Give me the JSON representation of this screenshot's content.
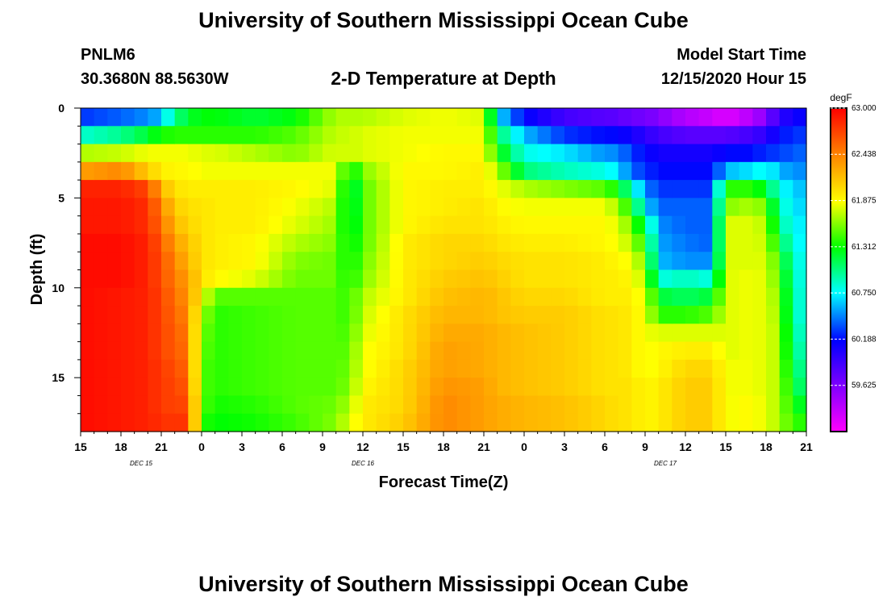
{
  "header": {
    "title": "University of Southern Mississippi Ocean Cube",
    "station_id": "PNLM6",
    "station_coords": "30.3680N 88.5630W",
    "plot_title": "2-D Temperature at Depth",
    "model_start_label": "Model Start Time",
    "model_start_value": "12/15/2020 Hour 15"
  },
  "footer": {
    "title": "University of Southern Mississippi Ocean Cube"
  },
  "chart_data": {
    "type": "heatmap",
    "title": "2-D Temperature at Depth",
    "xlabel": "Forecast Time(Z)",
    "ylabel": "Depth (ft)",
    "x_tick_labels": [
      "15",
      "18",
      "21",
      "0",
      "3",
      "6",
      "9",
      "12",
      "15",
      "18",
      "21",
      "0",
      "3",
      "6",
      "9",
      "12",
      "15",
      "18",
      "21"
    ],
    "x_hours_from_start": [
      0,
      3,
      6,
      9,
      12,
      15,
      18,
      21,
      24,
      27,
      30,
      33,
      36,
      39,
      42,
      45,
      48,
      51,
      54
    ],
    "date_labels": [
      {
        "text": "DEC 15",
        "hour": 4.5
      },
      {
        "text": "DEC 16",
        "hour": 21
      },
      {
        "text": "DEC 17",
        "hour": 43.5
      }
    ],
    "xlim_hours": [
      0,
      54
    ],
    "y_tick_labels": [
      "0",
      "5",
      "10",
      "15"
    ],
    "y_ticks": [
      0,
      5,
      10,
      15
    ],
    "ylim": [
      0,
      18
    ],
    "y_inverted": true,
    "colorbar": {
      "unit": "degF",
      "labels": [
        "63.000",
        "62.438",
        "61.875",
        "61.312",
        "60.750",
        "60.188",
        "59.625"
      ],
      "min": 59.0625,
      "max": 63.0,
      "colors_low_to_high": [
        "#ff00ff",
        "#8000ff",
        "#0000ff",
        "#00ffff",
        "#00ff00",
        "#ffff00",
        "#ff8000",
        "#ff0000"
      ]
    },
    "depth_levels_ft": [
      0.5,
      1.5,
      2.5,
      3.5,
      4.5,
      5.5,
      6.5,
      7.5,
      8.5,
      9.5,
      10.5,
      11.5,
      12.5,
      13.5,
      14.5,
      15.5,
      16.5,
      17.5
    ],
    "profiles": [
      {
        "hour": 0,
        "values": [
          60.3,
          60.85,
          61.7,
          62.3,
          62.85,
          62.9,
          62.9,
          62.95,
          62.95,
          62.95,
          62.95,
          62.95,
          62.95,
          62.95,
          62.95,
          62.95,
          62.95,
          62.95
        ]
      },
      {
        "hour": 3,
        "values": [
          60.4,
          61.0,
          61.75,
          62.4,
          62.85,
          62.9,
          62.9,
          62.95,
          62.95,
          62.95,
          62.9,
          62.9,
          62.9,
          62.9,
          62.9,
          62.9,
          62.9,
          62.9
        ]
      },
      {
        "hour": 5,
        "values": [
          60.5,
          61.2,
          61.85,
          62.1,
          62.7,
          62.8,
          62.8,
          62.85,
          62.85,
          62.85,
          62.85,
          62.85,
          62.85,
          62.85,
          62.85,
          62.85,
          62.85,
          62.85
        ]
      },
      {
        "hour": 6,
        "values": [
          60.6,
          61.35,
          61.85,
          61.95,
          62.2,
          62.4,
          62.5,
          62.6,
          62.65,
          62.65,
          62.7,
          62.7,
          62.7,
          62.7,
          62.75,
          62.75,
          62.75,
          62.8
        ]
      },
      {
        "hour": 7,
        "values": [
          61.0,
          61.4,
          61.85,
          61.9,
          62.0,
          62.1,
          62.2,
          62.3,
          62.4,
          62.45,
          62.5,
          62.55,
          62.6,
          62.6,
          62.65,
          62.7,
          62.7,
          62.75
        ]
      },
      {
        "hour": 8,
        "values": [
          61.2,
          61.4,
          61.85,
          61.9,
          61.95,
          62.0,
          62.05,
          62.15,
          62.2,
          62.3,
          62.35,
          62.4,
          62.45,
          62.5,
          62.55,
          62.6,
          62.7,
          62.8
        ]
      },
      {
        "hour": 9,
        "values": [
          61.3,
          61.4,
          61.8,
          61.85,
          61.95,
          62.0,
          62.0,
          62.0,
          62.0,
          62.0,
          61.9,
          61.7,
          61.6,
          61.55,
          61.5,
          61.5,
          61.5,
          61.4
        ]
      },
      {
        "hour": 10,
        "values": [
          61.3,
          61.4,
          61.8,
          61.85,
          61.95,
          61.95,
          61.95,
          61.95,
          61.95,
          61.9,
          61.5,
          61.4,
          61.4,
          61.4,
          61.4,
          61.4,
          61.35,
          61.3
        ]
      },
      {
        "hour": 13,
        "values": [
          61.2,
          61.4,
          61.7,
          61.85,
          61.95,
          61.95,
          61.95,
          61.9,
          61.9,
          61.8,
          61.5,
          61.45,
          61.45,
          61.45,
          61.45,
          61.45,
          61.4,
          61.35
        ]
      },
      {
        "hour": 16,
        "values": [
          61.3,
          61.5,
          61.6,
          61.85,
          61.9,
          61.85,
          61.8,
          61.7,
          61.6,
          61.55,
          61.5,
          61.5,
          61.5,
          61.5,
          61.5,
          61.5,
          61.5,
          61.45
        ]
      },
      {
        "hour": 19,
        "values": [
          61.7,
          61.75,
          61.8,
          61.85,
          61.8,
          61.7,
          61.65,
          61.6,
          61.55,
          61.55,
          61.5,
          61.5,
          61.5,
          61.5,
          61.5,
          61.5,
          61.55,
          61.6
        ]
      },
      {
        "hour": 20,
        "values": [
          61.7,
          61.75,
          61.75,
          61.2,
          61.0,
          61.05,
          61.1,
          61.2,
          61.25,
          61.3,
          61.4,
          61.4,
          61.45,
          61.5,
          61.55,
          61.6,
          61.7,
          61.8
        ]
      },
      {
        "hour": 21,
        "values": [
          61.7,
          61.8,
          61.8,
          61.6,
          61.5,
          61.5,
          61.5,
          61.5,
          61.55,
          61.6,
          61.7,
          61.75,
          61.8,
          61.85,
          61.85,
          61.9,
          61.95,
          61.95
        ]
      },
      {
        "hour": 24,
        "values": [
          61.8,
          61.85,
          61.85,
          61.9,
          61.9,
          61.9,
          61.9,
          61.95,
          61.95,
          61.95,
          61.95,
          62.0,
          62.0,
          62.0,
          62.05,
          62.05,
          62.05,
          62.1
        ]
      },
      {
        "hour": 27,
        "values": [
          61.85,
          61.85,
          61.9,
          61.9,
          61.95,
          61.95,
          62.0,
          62.05,
          62.05,
          62.1,
          62.15,
          62.2,
          62.25,
          62.3,
          62.3,
          62.35,
          62.4,
          62.4
        ]
      },
      {
        "hour": 30,
        "values": [
          61.8,
          61.85,
          61.9,
          61.95,
          61.95,
          62.0,
          62.0,
          62.05,
          62.1,
          62.15,
          62.2,
          62.2,
          62.25,
          62.25,
          62.25,
          62.3,
          62.3,
          62.3
        ]
      },
      {
        "hour": 31,
        "values": [
          60.7,
          61.1,
          61.35,
          61.7,
          61.85,
          61.9,
          61.95,
          62.0,
          62.05,
          62.1,
          62.15,
          62.15,
          62.2,
          62.2,
          62.2,
          62.2,
          62.25,
          62.25
        ]
      },
      {
        "hour": 33,
        "values": [
          60.2,
          60.6,
          60.8,
          61.05,
          61.7,
          61.85,
          61.9,
          61.95,
          62.0,
          62.0,
          62.05,
          62.1,
          62.15,
          62.15,
          62.15,
          62.15,
          62.2,
          62.2
        ]
      },
      {
        "hour": 36,
        "values": [
          59.9,
          60.3,
          60.7,
          60.9,
          61.6,
          61.85,
          61.9,
          61.95,
          62.0,
          62.0,
          62.05,
          62.1,
          62.1,
          62.1,
          62.1,
          62.1,
          62.15,
          62.15
        ]
      },
      {
        "hour": 39,
        "values": [
          59.8,
          60.2,
          60.5,
          60.8,
          61.5,
          61.85,
          61.9,
          61.9,
          61.95,
          61.95,
          61.95,
          62.0,
          62.0,
          62.0,
          62.0,
          62.0,
          62.05,
          62.05
        ]
      },
      {
        "hour": 40,
        "values": [
          59.8,
          60.2,
          60.5,
          60.7,
          61.3,
          61.65,
          61.8,
          61.85,
          61.9,
          61.95,
          61.95,
          62.0,
          62.0,
          62.0,
          62.0,
          62.0,
          62.0,
          62.0
        ]
      },
      {
        "hour": 41,
        "values": [
          59.7,
          60.1,
          60.3,
          60.4,
          60.9,
          61.3,
          61.55,
          61.7,
          61.85,
          61.9,
          61.95,
          61.95,
          61.95,
          61.95,
          61.95,
          62.0,
          62.0,
          62.0
        ]
      },
      {
        "hour": 42,
        "values": [
          59.7,
          60.0,
          60.2,
          60.3,
          60.5,
          60.7,
          61.1,
          61.35,
          61.55,
          61.7,
          61.8,
          61.85,
          61.85,
          61.85,
          61.85,
          61.9,
          61.9,
          61.9
        ]
      },
      {
        "hour": 43,
        "values": [
          59.6,
          59.9,
          60.1,
          60.2,
          60.3,
          60.4,
          60.5,
          60.55,
          60.6,
          60.8,
          61.2,
          61.4,
          61.8,
          61.9,
          61.9,
          61.95,
          61.95,
          61.95
        ]
      },
      {
        "hour": 45,
        "values": [
          59.4,
          59.8,
          60.1,
          60.2,
          60.3,
          60.4,
          60.4,
          60.45,
          60.5,
          60.9,
          61.1,
          61.4,
          61.8,
          61.95,
          62.05,
          62.1,
          62.1,
          62.1
        ]
      },
      {
        "hour": 47,
        "values": [
          59.3,
          59.8,
          60.1,
          60.2,
          60.3,
          60.4,
          60.4,
          60.4,
          60.5,
          60.8,
          61.2,
          61.5,
          61.8,
          61.95,
          62.05,
          62.1,
          62.1,
          62.1
        ]
      },
      {
        "hour": 48,
        "values": [
          59.2,
          59.8,
          60.2,
          60.6,
          61.4,
          61.6,
          61.8,
          61.8,
          61.8,
          61.8,
          61.8,
          61.8,
          61.8,
          61.8,
          61.85,
          61.85,
          61.85,
          61.85
        ]
      },
      {
        "hour": 50,
        "values": [
          59.4,
          59.9,
          60.2,
          60.7,
          61.4,
          61.7,
          61.8,
          61.8,
          61.8,
          61.85,
          61.85,
          61.85,
          61.85,
          61.85,
          61.85,
          61.85,
          61.9,
          61.9
        ]
      },
      {
        "hour": 51,
        "values": [
          59.6,
          60.0,
          60.3,
          60.8,
          61.2,
          61.55,
          61.7,
          61.75,
          61.8,
          61.8,
          61.8,
          61.8,
          61.8,
          61.8,
          61.8,
          61.8,
          61.8,
          61.8
        ]
      },
      {
        "hour": 52,
        "values": [
          60.0,
          60.2,
          60.3,
          60.6,
          60.8,
          60.9,
          61.0,
          61.2,
          61.4,
          61.5,
          61.6,
          61.65,
          61.7,
          61.7,
          61.7,
          61.7,
          61.7,
          61.7
        ]
      },
      {
        "hour": 53,
        "values": [
          60.1,
          60.3,
          60.4,
          60.5,
          60.65,
          60.7,
          60.75,
          60.8,
          60.85,
          60.9,
          60.9,
          60.9,
          60.95,
          61.0,
          61.1,
          61.2,
          61.3,
          61.4
        ]
      },
      {
        "hour": 54,
        "values": [
          60.2,
          60.3,
          60.4,
          60.5,
          60.6,
          60.65,
          60.7,
          60.7,
          60.75,
          60.75,
          60.8,
          60.8,
          60.85,
          60.9,
          60.95,
          61.0,
          61.2,
          61.4
        ]
      }
    ]
  }
}
